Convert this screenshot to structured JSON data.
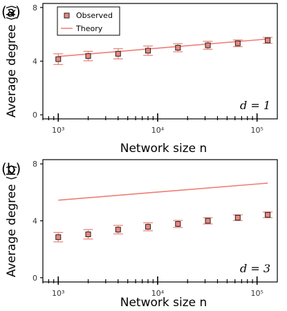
{
  "theme": {
    "marker_fill": "#e8877d",
    "marker_edge": "#222222",
    "error_color": "#e8877d",
    "theory_color": "#f07c74"
  },
  "chart_data": [
    {
      "type": "scatter",
      "panel_label": "(a)",
      "xlabel": "Network size n",
      "ylabel": "Average degree ⟨k⟩",
      "xscale": "log",
      "xlim": [
        700,
        160000
      ],
      "ylim": [
        -0.3,
        8.3
      ],
      "x_ticks": [
        1000,
        10000,
        100000
      ],
      "x_tick_labels": [
        "10³",
        "10⁴",
        "10⁵"
      ],
      "y_ticks": [
        0,
        4,
        8
      ],
      "y_tick_labels": [
        "0",
        "4",
        "8"
      ],
      "annotation": "d = 1",
      "legend": {
        "placement": "top-left",
        "entries": [
          "Observed",
          "Theory"
        ]
      },
      "series": [
        {
          "name": "Observed",
          "kind": "points",
          "x": [
            1000,
            2000,
            4000,
            8000,
            16000,
            32000,
            64000,
            128000
          ],
          "y": [
            4.15,
            4.38,
            4.55,
            4.78,
            5.0,
            5.18,
            5.33,
            5.55
          ],
          "err": [
            0.4,
            0.35,
            0.38,
            0.35,
            0.3,
            0.3,
            0.25,
            0.22
          ]
        },
        {
          "name": "Theory",
          "kind": "line",
          "x": [
            1000,
            128000
          ],
          "y": [
            4.35,
            5.65
          ]
        }
      ]
    },
    {
      "type": "scatter",
      "panel_label": "(b)",
      "xlabel": "Network size n",
      "ylabel": "Average degree ⟨k⟩",
      "xscale": "log",
      "xlim": [
        700,
        160000
      ],
      "ylim": [
        -0.3,
        8.3
      ],
      "x_ticks": [
        1000,
        10000,
        100000
      ],
      "x_tick_labels": [
        "10³",
        "10⁴",
        "10⁵"
      ],
      "y_ticks": [
        0,
        4,
        8
      ],
      "y_tick_labels": [
        "0",
        "4",
        "8"
      ],
      "annotation": "d = 3",
      "series": [
        {
          "name": "Observed",
          "kind": "points",
          "x": [
            1000,
            2000,
            4000,
            8000,
            16000,
            32000,
            64000,
            128000
          ],
          "y": [
            2.85,
            3.05,
            3.38,
            3.58,
            3.78,
            4.0,
            4.22,
            4.42
          ],
          "err": [
            0.33,
            0.33,
            0.3,
            0.28,
            0.25,
            0.22,
            0.2,
            0.2
          ]
        },
        {
          "name": "Theory",
          "kind": "line",
          "x": [
            1000,
            128000
          ],
          "y": [
            5.45,
            6.65
          ]
        }
      ]
    }
  ]
}
